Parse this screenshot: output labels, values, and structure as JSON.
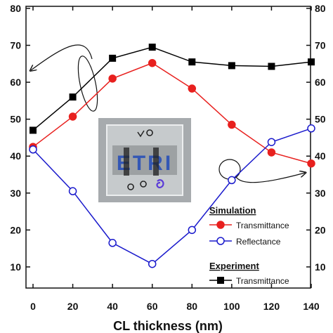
{
  "chart_data": {
    "type": "line",
    "xlabel": "CL thickness (nm)",
    "ylabel": "",
    "xlim": [
      -5,
      150
    ],
    "ylim": [
      0,
      80
    ],
    "x_ticks": [
      0,
      20,
      40,
      60,
      80,
      100,
      120,
      140
    ],
    "y_ticks": [
      10,
      20,
      30,
      40,
      50,
      60,
      70,
      80
    ],
    "y_ticks_right": [
      10,
      20,
      30,
      40,
      50,
      60,
      70,
      80
    ],
    "grid": false,
    "legend_position": "bottom-right",
    "legend_groups": [
      {
        "heading": "Simulation",
        "entries": [
          "Transmittance",
          "Reflectance"
        ]
      },
      {
        "heading": "Experiment",
        "entries": [
          "Transmittance"
        ]
      }
    ],
    "inset_image": {
      "text": "ETRI"
    },
    "series": [
      {
        "name": "Transmittance",
        "group": "Experiment",
        "color": "#000000",
        "marker": "square-filled",
        "x": [
          0,
          20,
          40,
          60,
          80,
          100,
          120,
          140
        ],
        "values": [
          47,
          56,
          66.5,
          69.5,
          65.5,
          64.5,
          64.3,
          65.5
        ]
      },
      {
        "name": "Transmittance",
        "group": "Simulation",
        "color": "#e8201e",
        "marker": "circle-filled",
        "x": [
          0,
          20,
          40,
          60,
          80,
          100,
          120,
          140
        ],
        "values": [
          42.5,
          50.7,
          61,
          65.2,
          58.3,
          48.5,
          41,
          38
        ]
      },
      {
        "name": "Reflectance",
        "group": "Simulation",
        "color": "#1a1acc",
        "marker": "circle-open",
        "x": [
          0,
          20,
          40,
          60,
          80,
          100,
          120,
          140
        ],
        "values": [
          41.8,
          30.5,
          16.5,
          10.8,
          20,
          33.5,
          43.8,
          47.5
        ]
      }
    ]
  }
}
